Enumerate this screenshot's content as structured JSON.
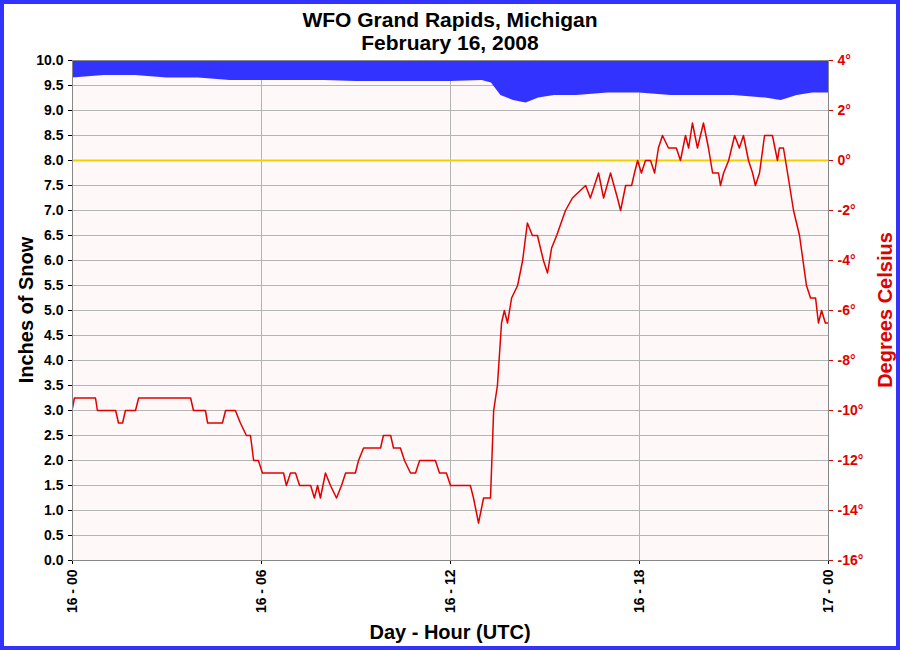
{
  "chart_data": {
    "type": "line",
    "title": "WFO Grand Rapids, Michigan",
    "subtitle": "February 16, 2008",
    "x_label": "Day - Hour (UTC)",
    "y_label": "Inches of Snow",
    "y2_label": "Degrees Celsius",
    "xlim": [
      0,
      24
    ],
    "xticks": [
      {
        "value": 0,
        "label": "16 - 00"
      },
      {
        "value": 6,
        "label": "16 - 06"
      },
      {
        "value": 12,
        "label": "16 - 12"
      },
      {
        "value": 18,
        "label": "16 - 18"
      },
      {
        "value": 24,
        "label": "17 - 00"
      }
    ],
    "ylim": [
      0,
      10
    ],
    "yticks": [
      {
        "value": 0,
        "label": "0.0"
      },
      {
        "value": 0.5,
        "label": "0.5"
      },
      {
        "value": 1,
        "label": "1.0"
      },
      {
        "value": 1.5,
        "label": "1.5"
      },
      {
        "value": 2,
        "label": "2.0"
      },
      {
        "value": 2.5,
        "label": "2.5"
      },
      {
        "value": 3,
        "label": "3.0"
      },
      {
        "value": 3.5,
        "label": "3.5"
      },
      {
        "value": 4,
        "label": "4.0"
      },
      {
        "value": 4.5,
        "label": "4.5"
      },
      {
        "value": 5,
        "label": "5.0"
      },
      {
        "value": 5.5,
        "label": "5.5"
      },
      {
        "value": 6,
        "label": "6.0"
      },
      {
        "value": 6.5,
        "label": "6.5"
      },
      {
        "value": 7,
        "label": "7.0"
      },
      {
        "value": 7.5,
        "label": "7.5"
      },
      {
        "value": 8,
        "label": "8.0"
      },
      {
        "value": 8.5,
        "label": "8.5"
      },
      {
        "value": 9,
        "label": "9.0"
      },
      {
        "value": 9.5,
        "label": "9.5"
      },
      {
        "value": 10,
        "label": "10.0"
      }
    ],
    "y2lim": [
      -16,
      4
    ],
    "y2ticks": [
      {
        "value": -16,
        "label": "-16°"
      },
      {
        "value": -14,
        "label": "-14°"
      },
      {
        "value": -12,
        "label": "-12°"
      },
      {
        "value": -10,
        "label": "-10°"
      },
      {
        "value": -8,
        "label": "-8°"
      },
      {
        "value": -6,
        "label": "-6°"
      },
      {
        "value": -4,
        "label": "-4°"
      },
      {
        "value": -2,
        "label": "-2°"
      },
      {
        "value": 0,
        "label": "0°"
      },
      {
        "value": 2,
        "label": "2°"
      },
      {
        "value": 4,
        "label": "4°"
      }
    ],
    "grid": true,
    "reference_lines": [
      {
        "value": 0,
        "axis": "y2",
        "color": "#f0d000"
      }
    ],
    "series": [
      {
        "type": "area",
        "color": "#3333ff",
        "x": [
          0,
          1,
          2,
          3,
          4,
          5,
          6,
          7,
          8,
          9,
          10,
          11,
          12,
          13,
          13.3,
          13.6,
          14,
          14.4,
          14.8,
          15.3,
          16,
          17,
          18,
          19,
          20,
          21,
          22,
          22.5,
          23,
          23.5,
          24
        ],
        "values": [
          9.65,
          9.7,
          9.7,
          9.65,
          9.65,
          9.6,
          9.6,
          9.6,
          9.6,
          9.58,
          9.58,
          9.58,
          9.58,
          9.6,
          9.55,
          9.3,
          9.2,
          9.15,
          9.25,
          9.3,
          9.3,
          9.35,
          9.35,
          9.3,
          9.3,
          9.3,
          9.25,
          9.2,
          9.3,
          9.35,
          9.35
        ]
      },
      {
        "type": "line",
        "color": "#e00000",
        "axis": "y2",
        "x": [
          0,
          0.06,
          0.73,
          0.79,
          1.37,
          1.46,
          1.59,
          1.68,
          2,
          2.1,
          3.75,
          3.84,
          4.22,
          4.29,
          4.76,
          4.86,
          5.17,
          5.33,
          5.52,
          5.65,
          5.75,
          5.9,
          6.03,
          6.7,
          6.79,
          6.92,
          7.08,
          7.21,
          7.56,
          7.68,
          7.78,
          7.87,
          8.03,
          8.19,
          8.38,
          8.54,
          8.67,
          8.98,
          9.08,
          9.24,
          9.78,
          9.87,
          10.1,
          10.19,
          10.41,
          10.54,
          10.73,
          10.89,
          11.02,
          11.52,
          11.65,
          11.87,
          12,
          12.63,
          12.73,
          12.89,
          13.05,
          13.27,
          13.37,
          13.49,
          13.62,
          13.71,
          13.81,
          13.94,
          14.13,
          14.29,
          14.44,
          14.6,
          14.76,
          14.95,
          15.08,
          15.21,
          15.37,
          15.65,
          15.87,
          16.29,
          16.44,
          16.7,
          16.86,
          17.08,
          17.3,
          17.4,
          17.56,
          17.75,
          17.84,
          17.94,
          18.06,
          18.19,
          18.35,
          18.48,
          18.6,
          18.73,
          18.92,
          19.17,
          19.3,
          19.46,
          19.56,
          19.68,
          19.84,
          20.03,
          20.19,
          20.32,
          20.51,
          20.57,
          20.67,
          20.83,
          21.02,
          21.17,
          21.3,
          21.46,
          21.59,
          21.68,
          21.81,
          21.97,
          22.22,
          22.38,
          22.44,
          22.57,
          22.7,
          22.89,
          23.08,
          23.3,
          23.43,
          23.59,
          23.68,
          23.78,
          23.9,
          24
        ],
        "values": [
          -9.9,
          -9.5,
          -9.5,
          -10,
          -10,
          -10.5,
          -10.5,
          -10,
          -10,
          -9.5,
          -9.5,
          -10,
          -10,
          -10.5,
          -10.5,
          -10,
          -10,
          -10.5,
          -11,
          -11,
          -12,
          -12,
          -12.5,
          -12.5,
          -13,
          -12.5,
          -12.5,
          -13,
          -13,
          -13.5,
          -13,
          -13.5,
          -12.5,
          -13,
          -13.5,
          -13,
          -12.5,
          -12.5,
          -12,
          -11.5,
          -11.5,
          -11,
          -11,
          -11.5,
          -11.5,
          -12,
          -12.5,
          -12.5,
          -12,
          -12,
          -12.5,
          -12.5,
          -13,
          -13,
          -13.5,
          -14.5,
          -13.5,
          -13.5,
          -10,
          -9,
          -6.5,
          -6,
          -6.5,
          -5.5,
          -5,
          -4,
          -2.5,
          -3,
          -3,
          -4,
          -4.5,
          -3.5,
          -3,
          -2,
          -1.5,
          -1,
          -1.5,
          -0.5,
          -1.5,
          -0.5,
          -1.5,
          -2,
          -1,
          -1,
          -0.5,
          0,
          -0.5,
          0,
          0,
          -0.5,
          0.5,
          1,
          0.5,
          0.5,
          0,
          1,
          0.5,
          1.5,
          0.5,
          1.5,
          0.5,
          -0.5,
          -0.5,
          -1,
          -0.5,
          0,
          1,
          0.5,
          1,
          0,
          -0.5,
          -1,
          -0.5,
          1,
          1,
          0,
          0.5,
          0.5,
          -0.5,
          -2,
          -3,
          -5,
          -5.5,
          -5.5,
          -6.5,
          -6,
          -6.5,
          -6.5
        ]
      }
    ]
  }
}
